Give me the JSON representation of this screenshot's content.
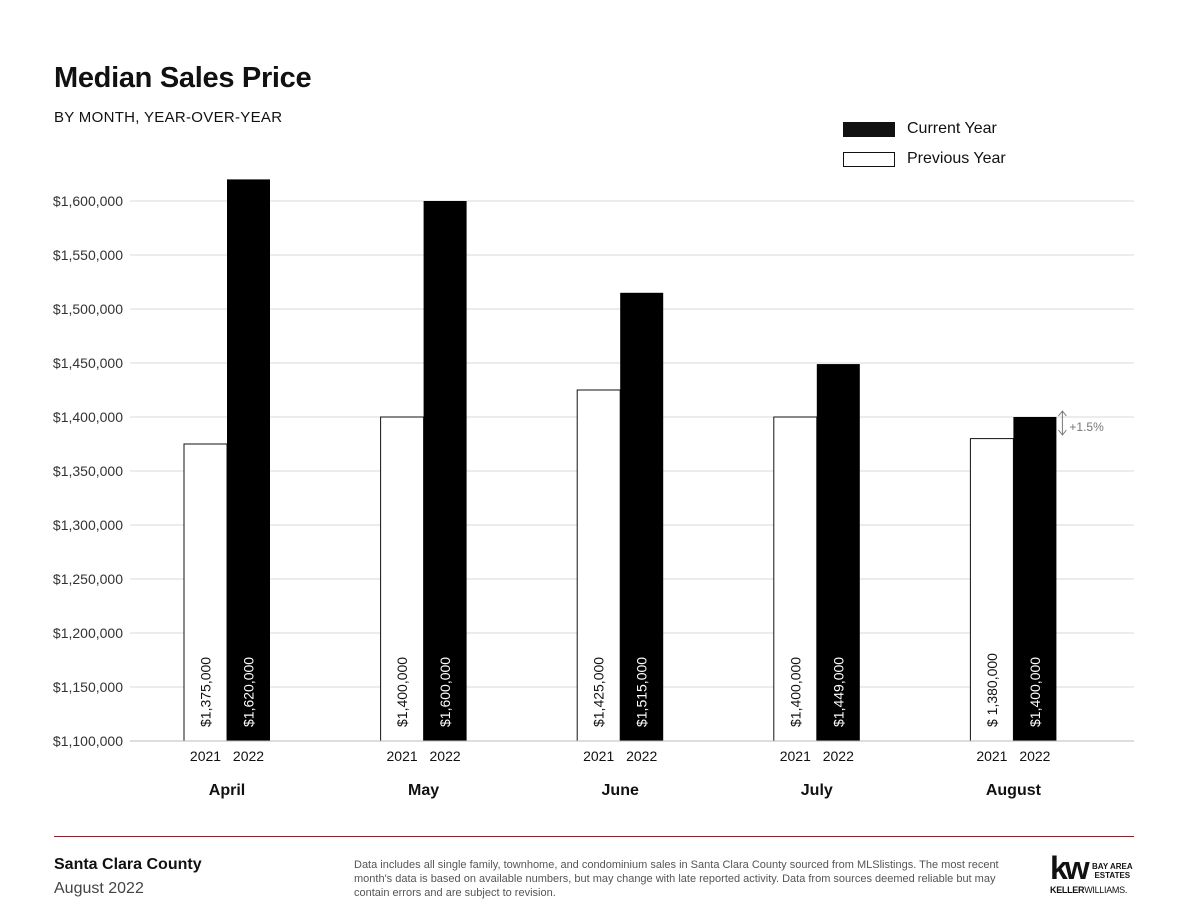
{
  "header": {
    "title": "Median Sales Price",
    "subtitle": "BY MONTH, YEAR-OVER-YEAR"
  },
  "legend": {
    "current_label": "Current Year",
    "previous_label": "Previous Year"
  },
  "chart_data": {
    "type": "bar",
    "title": "Median Sales Price",
    "subtitle": "BY MONTH, YEAR-OVER-YEAR",
    "categories": [
      "April",
      "May",
      "June",
      "July",
      "August"
    ],
    "years": {
      "previous": "2021",
      "current": "2022"
    },
    "series": [
      {
        "name": "Previous Year",
        "year": "2021",
        "values": [
          1375000,
          1400000,
          1425000,
          1400000,
          1380000
        ],
        "labels": [
          "$1,375,000",
          "$1,400,000",
          "$1,425,000",
          "$1,400,000",
          "$ 1,380,000"
        ]
      },
      {
        "name": "Current Year",
        "year": "2022",
        "values": [
          1620000,
          1600000,
          1515000,
          1449000,
          1400000
        ],
        "labels": [
          "$1,620,000",
          "$1,600,000",
          "$1,515,000",
          "$1,449,000",
          "$1,400,000"
        ]
      }
    ],
    "ylim": [
      1100000,
      1600000
    ],
    "yticks": [
      1100000,
      1150000,
      1200000,
      1250000,
      1300000,
      1350000,
      1400000,
      1450000,
      1500000,
      1550000,
      1600000
    ],
    "ytick_labels": [
      "$1,100,000",
      "$1,150,000",
      "$1,200,000",
      "$1,250,000",
      "$1,300,000",
      "$1,350,000",
      "$1,400,000",
      "$1,450,000",
      "$1,500,000",
      "$1,550,000",
      "$1,600,000"
    ],
    "grid": true,
    "legend_position": "top-right",
    "annotations": [
      {
        "category": "August",
        "text": "+1.5%"
      }
    ],
    "colors": {
      "current": "#000000",
      "previous": "#ffffff",
      "grid": "#d9d9d9",
      "text": "#111111",
      "annotation": "#777777"
    }
  },
  "footer": {
    "county": "Santa Clara County",
    "period": "August 2022",
    "disclaimer": "Data includes all single family, townhome, and condominium sales in Santa Clara County sourced from MLSlistings. The most recent month's data is based on available numbers, but may change with late reported activity. Data from sources deemed reliable but may contain errors and are subject to revision.",
    "divider_color": "#d0021b"
  },
  "logo": {
    "mark": "kw",
    "line1": "BAY AREA",
    "line2": "ESTATES",
    "brand_bold": "KELLER",
    "brand_rest": "WILLIAMS."
  }
}
